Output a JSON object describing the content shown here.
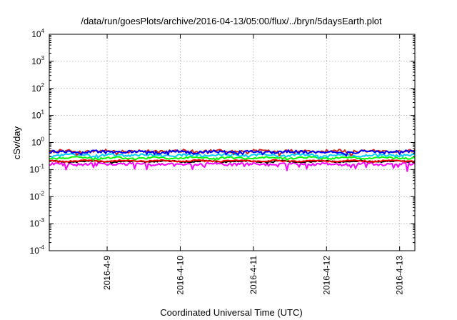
{
  "chart_data": {
    "type": "line",
    "title": "/data/run/goesPlots/archive/2016-04-13/05:00/flux/../bryn/5daysEarth.plot",
    "xlabel": "Coordinated Universal Time (UTC)",
    "ylabel": "cSv/day",
    "yscale": "log",
    "ylim": [
      0.0001,
      10000
    ],
    "xlim": [
      "2016-04-08 05:00",
      "2016-04-13 05:00"
    ],
    "grid": true,
    "y_ticks": [
      {
        "base": "10",
        "exp": "4",
        "value": 10000
      },
      {
        "base": "10",
        "exp": "3",
        "value": 1000
      },
      {
        "base": "10",
        "exp": "2",
        "value": 100
      },
      {
        "base": "10",
        "exp": "1",
        "value": 10
      },
      {
        "base": "10",
        "exp": "0",
        "value": 1
      },
      {
        "base": "10",
        "exp": "-1",
        "value": 0.1
      },
      {
        "base": "10",
        "exp": "-2",
        "value": 0.01
      },
      {
        "base": "10",
        "exp": "-3",
        "value": 0.001
      },
      {
        "base": "10",
        "exp": "-4",
        "value": 0.0001
      }
    ],
    "x_ticks": [
      {
        "label": "2016-4-9",
        "value": "2016-04-09 00:00"
      },
      {
        "label": "2016-4-10",
        "value": "2016-04-10 00:00"
      },
      {
        "label": "2016-4-11",
        "value": "2016-04-11 00:00"
      },
      {
        "label": "2016-4-12",
        "value": "2016-04-12 00:00"
      },
      {
        "label": "2016-4-13",
        "value": "2016-04-13 00:00"
      }
    ],
    "series": [
      {
        "color": "#ff00ff",
        "level": 0.16,
        "amp": 0.1,
        "spike_prob": 0.1,
        "spike_depth": 0.45
      },
      {
        "color": "#000000",
        "level": 0.2,
        "amp": 0.05,
        "spike_prob": 0.05,
        "spike_depth": 0.12
      },
      {
        "color": "#ff0000",
        "level": 0.21,
        "amp": 0.05,
        "spike_prob": 0.05,
        "spike_depth": 0.12
      },
      {
        "color": "#00ff00",
        "level": 0.27,
        "amp": 0.07,
        "spike_prob": 0.06,
        "spike_depth": 0.14
      },
      {
        "color": "#00ccff",
        "level": 0.34,
        "amp": 0.1,
        "spike_prob": 0.07,
        "spike_depth": 0.2
      },
      {
        "color": "#cc2222",
        "level": 0.48,
        "amp": 0.12,
        "spike_prob": 0.09,
        "spike_depth": 0.25
      },
      {
        "color": "#0000ff",
        "level": 0.45,
        "amp": 0.12,
        "spike_prob": 0.09,
        "spike_depth": 0.25
      }
    ]
  }
}
